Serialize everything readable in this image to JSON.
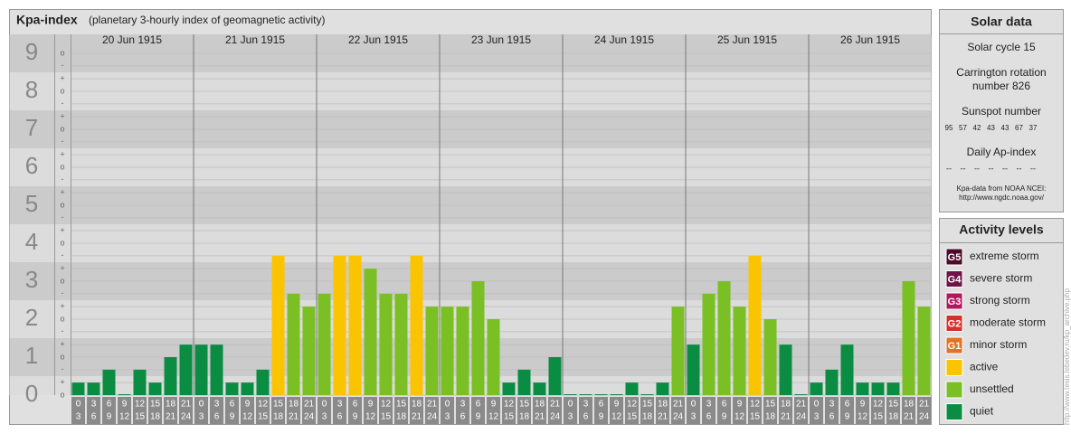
{
  "chart_data": {
    "type": "bar",
    "title": "Kpa-index",
    "subtitle": "(planetary 3-hourly index of geomagnetic activity)",
    "days": [
      "20 Jun 1915",
      "21 Jun 1915",
      "22 Jun 1915",
      "23 Jun 1915",
      "24 Jun 1915",
      "25 Jun 1915",
      "26 Jun 1915"
    ],
    "slots": [
      [
        "0",
        "3"
      ],
      [
        "3",
        "6"
      ],
      [
        "6",
        "9"
      ],
      [
        "9",
        "12"
      ],
      [
        "12",
        "15"
      ],
      [
        "15",
        "18"
      ],
      [
        "18",
        "21"
      ],
      [
        "21",
        "24"
      ]
    ],
    "values": [
      0.33,
      0.33,
      0.67,
      0,
      0.67,
      0.33,
      1,
      1.33,
      1.33,
      1.33,
      0.33,
      0.33,
      0.67,
      3.67,
      2.67,
      2.33,
      2.67,
      3.67,
      3.67,
      3.33,
      2.67,
      2.67,
      3.67,
      2.33,
      2.33,
      2.33,
      3,
      2,
      0.33,
      0.67,
      0.33,
      1,
      0,
      0,
      0,
      0,
      0.33,
      0,
      0.33,
      2.33,
      1.33,
      2.67,
      3,
      2.33,
      3.67,
      2,
      1.33,
      0,
      0.33,
      0.67,
      1.33,
      0.33,
      0.33,
      0.33,
      3,
      2.33
    ],
    "colors": [
      "#0a8c43",
      "#0a8c43",
      "#0a8c43",
      "#0a8c43",
      "#0a8c43",
      "#0a8c43",
      "#0a8c43",
      "#0a8c43",
      "#0a8c43",
      "#0a8c43",
      "#0a8c43",
      "#0a8c43",
      "#0a8c43",
      "#fbc400",
      "#7abf23",
      "#7abf23",
      "#7abf23",
      "#fbc400",
      "#fbc400",
      "#7abf23",
      "#7abf23",
      "#7abf23",
      "#fbc400",
      "#7abf23",
      "#7abf23",
      "#7abf23",
      "#7abf23",
      "#7abf23",
      "#0a8c43",
      "#0a8c43",
      "#0a8c43",
      "#0a8c43",
      "#0a8c43",
      "#0a8c43",
      "#0a8c43",
      "#0a8c43",
      "#0a8c43",
      "#0a8c43",
      "#0a8c43",
      "#7abf23",
      "#0a8c43",
      "#7abf23",
      "#7abf23",
      "#7abf23",
      "#fbc400",
      "#7abf23",
      "#0a8c43",
      "#0a8c43",
      "#0a8c43",
      "#0a8c43",
      "#0a8c43",
      "#0a8c43",
      "#0a8c43",
      "#0a8c43",
      "#7abf23",
      "#7abf23"
    ],
    "ylim": [
      0,
      9.5
    ],
    "yticks": [
      0,
      1,
      2,
      3,
      4,
      5,
      6,
      7,
      8,
      9
    ],
    "yminor": [
      {
        "value": 0,
        "label": "o"
      },
      {
        "value": 0.33,
        "label": "+"
      },
      {
        "value": 0.67,
        "label": "-"
      },
      {
        "value": 1,
        "label": "o"
      },
      {
        "value": 1.33,
        "label": "+"
      },
      {
        "value": 1.67,
        "label": "-"
      },
      {
        "value": 2,
        "label": "o"
      },
      {
        "value": 2.33,
        "label": "+"
      },
      {
        "value": 2.67,
        "label": "-"
      },
      {
        "value": 3,
        "label": "o"
      },
      {
        "value": 3.33,
        "label": "+"
      },
      {
        "value": 3.67,
        "label": "-"
      },
      {
        "value": 4,
        "label": "o"
      },
      {
        "value": 4.33,
        "label": "+"
      },
      {
        "value": 4.67,
        "label": "-"
      },
      {
        "value": 5,
        "label": "o"
      },
      {
        "value": 5.33,
        "label": "+"
      },
      {
        "value": 5.67,
        "label": "-"
      },
      {
        "value": 6,
        "label": "o"
      },
      {
        "value": 6.33,
        "label": "+"
      },
      {
        "value": 6.67,
        "label": "-"
      },
      {
        "value": 7,
        "label": "o"
      },
      {
        "value": 7.33,
        "label": "+"
      },
      {
        "value": 7.67,
        "label": "-"
      },
      {
        "value": 8,
        "label": "o"
      },
      {
        "value": 8.33,
        "label": "+"
      },
      {
        "value": 8.67,
        "label": "-"
      },
      {
        "value": 9,
        "label": "o"
      }
    ],
    "grid": true
  },
  "solar": {
    "title": "Solar data",
    "cycle": "Solar cycle 15",
    "carrington": [
      "Carrington rotation",
      "number 826"
    ],
    "sunspot_title": "Sunspot number",
    "sunspots": [
      95,
      57,
      42,
      43,
      43,
      67,
      37
    ],
    "ap_title": "Daily Ap-index",
    "ap": [
      "--",
      "--",
      "--",
      "--",
      "--",
      "--",
      "--"
    ],
    "source": [
      "Kpa-data from NOAA NCEI:",
      "http://www.ngdc.noaa.gov/"
    ]
  },
  "activity": {
    "title": "Activity levels",
    "levels": [
      {
        "code": "G5",
        "name": "extreme storm",
        "color": "#4d0a2a"
      },
      {
        "code": "G4",
        "name": "severe storm",
        "color": "#6e1447"
      },
      {
        "code": "G3",
        "name": "strong storm",
        "color": "#b3175e"
      },
      {
        "code": "G2",
        "name": "moderate storm",
        "color": "#d6302a"
      },
      {
        "code": "G1",
        "name": "minor storm",
        "color": "#e2731f"
      },
      {
        "name": "active",
        "color": "#fbc400"
      },
      {
        "name": "unsettled",
        "color": "#7abf23"
      },
      {
        "name": "quiet",
        "color": "#0a8c43"
      }
    ]
  },
  "credit": "http://www.tesis.lebedev.ru/kp_archive.php"
}
